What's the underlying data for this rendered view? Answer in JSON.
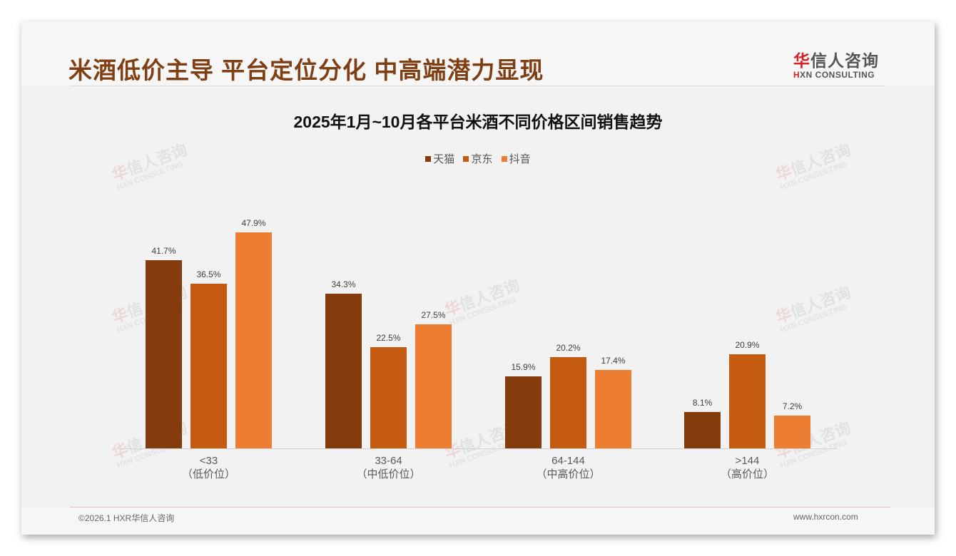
{
  "page": {
    "title": "米酒低价主导 平台定位分化 中高端潜力显现",
    "logo": {
      "mark": "华",
      "cn_rest": "信人咨询",
      "en_mark": "H",
      "en_rest": "XN CONSULTING"
    },
    "watermark": {
      "cn_mark": "华",
      "cn_rest": "信人咨询",
      "en": "HXN CONSULTING"
    },
    "footer": {
      "left": "©2026.1 HXR华信人咨询",
      "right": "www.hxrcon.com"
    }
  },
  "chart_data": {
    "type": "bar",
    "title": "2025年1月~10月各平台米酒不同价格区间销售趋势",
    "xlabel": "",
    "ylabel": "",
    "ylim": [
      0,
      50
    ],
    "grid": false,
    "legend_position": "top",
    "categories": [
      "<33",
      "33-64",
      "64-144",
      ">144"
    ],
    "category_sublabels": [
      "（低价位）",
      "（中低价位）",
      "（中高价位）",
      "（高价位）"
    ],
    "series": [
      {
        "name": "天猫",
        "color": "#843c0c",
        "values": [
          41.7,
          34.3,
          15.9,
          8.1
        ],
        "labels": [
          "41.7%",
          "34.3%",
          "15.9%",
          "8.1%"
        ]
      },
      {
        "name": "京东",
        "color": "#c55a11",
        "values": [
          36.5,
          22.5,
          20.2,
          20.9
        ],
        "labels": [
          "36.5%",
          "22.5%",
          "20.2%",
          "20.9%"
        ]
      },
      {
        "name": "抖音",
        "color": "#ed7d31",
        "values": [
          47.9,
          27.5,
          17.4,
          7.2
        ],
        "labels": [
          "47.9%",
          "27.5%",
          "17.4%",
          "7.2%"
        ]
      }
    ]
  }
}
